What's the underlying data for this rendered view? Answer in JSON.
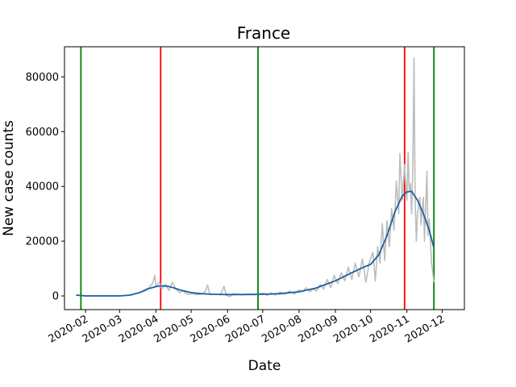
{
  "chart_data": {
    "type": "line",
    "title": "France",
    "xlabel": "Date",
    "ylabel": "New case counts",
    "xlim": [
      "2020-01-14",
      "2020-12-20"
    ],
    "ylim": [
      -5000,
      91000
    ],
    "y_ticks": [
      0,
      20000,
      40000,
      60000,
      80000
    ],
    "y_tick_labels": [
      "0",
      "20000",
      "40000",
      "60000",
      "80000"
    ],
    "x_ticks": [
      "2020-02-01",
      "2020-03-01",
      "2020-04-01",
      "2020-05-01",
      "2020-06-01",
      "2020-07-01",
      "2020-08-01",
      "2020-09-01",
      "2020-10-01",
      "2020-11-01",
      "2020-12-01"
    ],
    "x_tick_labels": [
      "2020-02",
      "2020-03",
      "2020-04",
      "2020-05",
      "2020-06",
      "2020-07",
      "2020-08",
      "2020-09",
      "2020-10",
      "2020-11",
      "2020-12"
    ],
    "grid": false,
    "legend": "none",
    "series": [
      {
        "color": "#bdbdbd",
        "points": [
          [
            "2020-01-24",
            300
          ],
          [
            "2020-02-01",
            0
          ],
          [
            "2020-02-15",
            0
          ],
          [
            "2020-03-01",
            0
          ],
          [
            "2020-03-10",
            300
          ],
          [
            "2020-03-18",
            1200
          ],
          [
            "2020-03-24",
            2000
          ],
          [
            "2020-03-29",
            4500
          ],
          [
            "2020-03-31",
            7500
          ],
          [
            "2020-04-01",
            3500
          ],
          [
            "2020-04-04",
            5000
          ],
          [
            "2020-04-06",
            2500
          ],
          [
            "2020-04-09",
            4200
          ],
          [
            "2020-04-12",
            2000
          ],
          [
            "2020-04-15",
            5000
          ],
          [
            "2020-04-18",
            2500
          ],
          [
            "2020-04-21",
            1200
          ],
          [
            "2020-04-24",
            1800
          ],
          [
            "2020-04-28",
            500
          ],
          [
            "2020-05-01",
            800
          ],
          [
            "2020-05-06",
            500
          ],
          [
            "2020-05-10",
            700
          ],
          [
            "2020-05-13",
            1500
          ],
          [
            "2020-05-15",
            4000
          ],
          [
            "2020-05-17",
            500
          ],
          [
            "2020-05-22",
            600
          ],
          [
            "2020-05-26",
            400
          ],
          [
            "2020-05-29",
            3500
          ],
          [
            "2020-05-31",
            200
          ],
          [
            "2020-06-03",
            -300
          ],
          [
            "2020-06-06",
            800
          ],
          [
            "2020-06-10",
            600
          ],
          [
            "2020-06-15",
            500
          ],
          [
            "2020-06-20",
            700
          ],
          [
            "2020-06-25",
            400
          ],
          [
            "2020-06-29",
            900
          ],
          [
            "2020-07-02",
            1000
          ],
          [
            "2020-07-05",
            200
          ],
          [
            "2020-07-08",
            1100
          ],
          [
            "2020-07-12",
            400
          ],
          [
            "2020-07-16",
            1400
          ],
          [
            "2020-07-20",
            600
          ],
          [
            "2020-07-24",
            1800
          ],
          [
            "2020-07-28",
            700
          ],
          [
            "2020-08-01",
            2200
          ],
          [
            "2020-08-04",
            1500
          ],
          [
            "2020-08-07",
            3000
          ],
          [
            "2020-08-10",
            1500
          ],
          [
            "2020-08-13",
            2500
          ],
          [
            "2020-08-16",
            1800
          ],
          [
            "2020-08-19",
            4200
          ],
          [
            "2020-08-22",
            2500
          ],
          [
            "2020-08-25",
            6000
          ],
          [
            "2020-08-28",
            3000
          ],
          [
            "2020-08-31",
            7500
          ],
          [
            "2020-09-03",
            4500
          ],
          [
            "2020-09-06",
            8500
          ],
          [
            "2020-09-09",
            5500
          ],
          [
            "2020-09-12",
            10500
          ],
          [
            "2020-09-15",
            6000
          ],
          [
            "2020-09-18",
            12000
          ],
          [
            "2020-09-21",
            7000
          ],
          [
            "2020-09-24",
            13500
          ],
          [
            "2020-09-27",
            5000
          ],
          [
            "2020-09-30",
            12500
          ],
          [
            "2020-10-03",
            16000
          ],
          [
            "2020-10-05",
            5500
          ],
          [
            "2020-10-07",
            18000
          ],
          [
            "2020-10-09",
            12000
          ],
          [
            "2020-10-11",
            26500
          ],
          [
            "2020-10-13",
            13000
          ],
          [
            "2020-10-15",
            27500
          ],
          [
            "2020-10-17",
            18000
          ],
          [
            "2020-10-19",
            32000
          ],
          [
            "2020-10-21",
            24000
          ],
          [
            "2020-10-23",
            42000
          ],
          [
            "2020-10-25",
            30000
          ],
          [
            "2020-10-26",
            52000
          ],
          [
            "2020-10-28",
            35000
          ],
          [
            "2020-10-30",
            48000
          ],
          [
            "2020-10-31",
            40000
          ],
          [
            "2020-11-01",
            35000
          ],
          [
            "2020-11-02",
            52500
          ],
          [
            "2020-11-03",
            38000
          ],
          [
            "2020-11-04",
            41000
          ],
          [
            "2020-11-05",
            30000
          ],
          [
            "2020-11-06",
            46000
          ],
          [
            "2020-11-07",
            87000
          ],
          [
            "2020-11-08",
            35000
          ],
          [
            "2020-11-09",
            20000
          ],
          [
            "2020-11-10",
            30000
          ],
          [
            "2020-11-12",
            36000
          ],
          [
            "2020-11-13",
            26000
          ],
          [
            "2020-11-15",
            36000
          ],
          [
            "2020-11-16",
            20000
          ],
          [
            "2020-11-18",
            45500
          ],
          [
            "2020-11-19",
            22000
          ],
          [
            "2020-11-20",
            28000
          ],
          [
            "2020-11-22",
            12000
          ],
          [
            "2020-11-24",
            5000
          ]
        ]
      },
      {
        "color": "#1f5f9f",
        "points": [
          [
            "2020-01-24",
            300
          ],
          [
            "2020-02-01",
            0
          ],
          [
            "2020-03-01",
            0
          ],
          [
            "2020-03-10",
            300
          ],
          [
            "2020-03-18",
            1200
          ],
          [
            "2020-03-25",
            2600
          ],
          [
            "2020-04-01",
            3400
          ],
          [
            "2020-04-05",
            3700
          ],
          [
            "2020-04-10",
            3600
          ],
          [
            "2020-04-15",
            3100
          ],
          [
            "2020-04-22",
            2100
          ],
          [
            "2020-05-01",
            1200
          ],
          [
            "2020-05-10",
            800
          ],
          [
            "2020-05-20",
            600
          ],
          [
            "2020-06-01",
            500
          ],
          [
            "2020-06-15",
            500
          ],
          [
            "2020-07-01",
            600
          ],
          [
            "2020-07-15",
            800
          ],
          [
            "2020-08-01",
            1500
          ],
          [
            "2020-08-15",
            2800
          ],
          [
            "2020-09-01",
            5500
          ],
          [
            "2020-09-15",
            8500
          ],
          [
            "2020-09-25",
            10500
          ],
          [
            "2020-10-01",
            11500
          ],
          [
            "2020-10-08",
            15000
          ],
          [
            "2020-10-15",
            22000
          ],
          [
            "2020-10-22",
            31000
          ],
          [
            "2020-10-28",
            36500
          ],
          [
            "2020-11-01",
            38000
          ],
          [
            "2020-11-05",
            38200
          ],
          [
            "2020-11-10",
            35000
          ],
          [
            "2020-11-15",
            30000
          ],
          [
            "2020-11-20",
            24000
          ],
          [
            "2020-11-24",
            17500
          ]
        ]
      }
    ],
    "vertical_lines": [
      {
        "x": "2020-01-28",
        "color": "#008000"
      },
      {
        "x": "2020-04-05",
        "color": "#ff0000"
      },
      {
        "x": "2020-06-27",
        "color": "#008000"
      },
      {
        "x": "2020-10-30",
        "color": "#ff0000"
      },
      {
        "x": "2020-11-24",
        "color": "#008000"
      }
    ]
  }
}
